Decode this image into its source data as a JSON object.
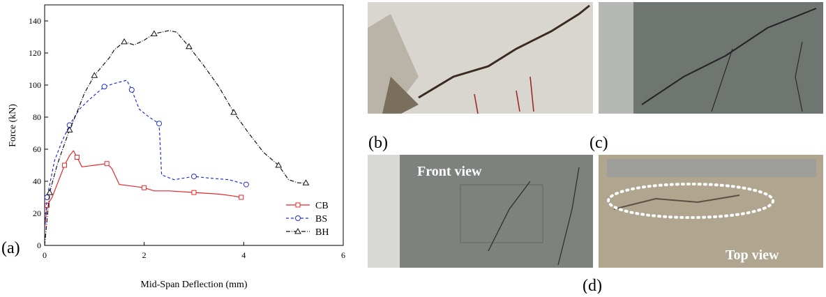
{
  "chart_data": {
    "type": "line",
    "xlabel": "Mid-Span Deflection (mm)",
    "ylabel": "Force (kN)",
    "xlim": [
      0,
      6
    ],
    "xticks": [
      0,
      2,
      4,
      6
    ],
    "ylim": [
      0,
      150
    ],
    "yticks": [
      0,
      20,
      40,
      60,
      80,
      100,
      120,
      140
    ],
    "legend": "lower right",
    "series": [
      {
        "name": "CB",
        "color": "#e8262b",
        "marker": "square",
        "dash": "solid",
        "x": [
          0,
          0.05,
          0.15,
          0.3,
          0.4,
          0.5,
          0.58,
          0.65,
          0.75,
          1.0,
          1.25,
          1.35,
          1.5,
          2.0,
          2.2,
          2.5,
          3.0,
          3.5,
          3.75,
          3.95
        ],
        "values": [
          10,
          25,
          30,
          42,
          50,
          56,
          59,
          55,
          49,
          50,
          51,
          48,
          38,
          36,
          34,
          34,
          33,
          32,
          31,
          30
        ]
      },
      {
        "name": "BS",
        "color": "#1f2fd6",
        "marker": "circle",
        "dash": "dashed",
        "x": [
          0,
          0.05,
          0.2,
          0.35,
          0.5,
          0.7,
          0.9,
          1.2,
          1.4,
          1.65,
          1.75,
          1.9,
          2.1,
          2.3,
          2.35,
          2.6,
          3.0,
          3.3,
          3.7,
          4.05
        ],
        "values": [
          10,
          30,
          53,
          65,
          75,
          85,
          91,
          99,
          101,
          103,
          97,
          85,
          80,
          76,
          44,
          41,
          43,
          42,
          41,
          38
        ]
      },
      {
        "name": "BH",
        "color": "#111111",
        "marker": "triangle",
        "dash": "dashdot",
        "x": [
          0,
          0.1,
          0.25,
          0.35,
          0.5,
          0.65,
          0.8,
          1.0,
          1.3,
          1.4,
          1.6,
          1.8,
          2.0,
          2.2,
          2.5,
          2.65,
          2.9,
          3.2,
          3.5,
          3.8,
          4.1,
          4.4,
          4.7,
          4.9,
          5.1,
          5.25
        ],
        "values": [
          0,
          33,
          50,
          59,
          72,
          83,
          95,
          106,
          117,
          122,
          127,
          125,
          128,
          132,
          134,
          133,
          124,
          112,
          99,
          83,
          70,
          58,
          50,
          41,
          39,
          39
        ]
      }
    ]
  },
  "panel_labels": [
    "(a)",
    "(b)",
    "(c)",
    "(d)"
  ],
  "photo_captions": {
    "front": "Front view",
    "top": "Top view"
  }
}
